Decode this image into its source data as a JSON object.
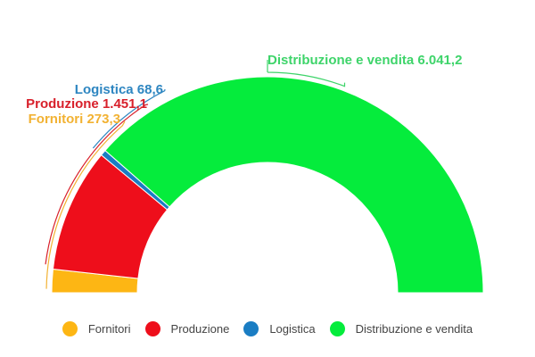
{
  "chart_data": {
    "type": "pie",
    "subtype": "semi-donut",
    "categories": [
      "Fornitori",
      "Produzione",
      "Logistica",
      "Distribuzione e vendita"
    ],
    "values": [
      273.3,
      1451.1,
      68.6,
      6041.2
    ],
    "value_labels": [
      "273,3",
      "1.451,1",
      "68,6",
      "6.041,2"
    ],
    "colors": [
      "#FDB614",
      "#EE0E1B",
      "#1A7DC3",
      "#05EC3C"
    ],
    "title": "",
    "legend_position": "bottom"
  },
  "labels": [
    {
      "text": "Fornitori 273,3",
      "color": "#F2B233"
    },
    {
      "text": "Produzione 1.451,1",
      "color": "#D8202B"
    },
    {
      "text": "Logistica 68,6",
      "color": "#2E86C1"
    },
    {
      "text": "Distribuzione e vendita 6.041,2",
      "color": "#3ED46A"
    }
  ],
  "legend": [
    {
      "label": "Fornitori",
      "color": "#FDB614"
    },
    {
      "label": "Produzione",
      "color": "#EE0E1B"
    },
    {
      "label": "Logistica",
      "color": "#1A7DC3"
    },
    {
      "label": "Distribuzione e vendita",
      "color": "#05EC3C"
    }
  ]
}
